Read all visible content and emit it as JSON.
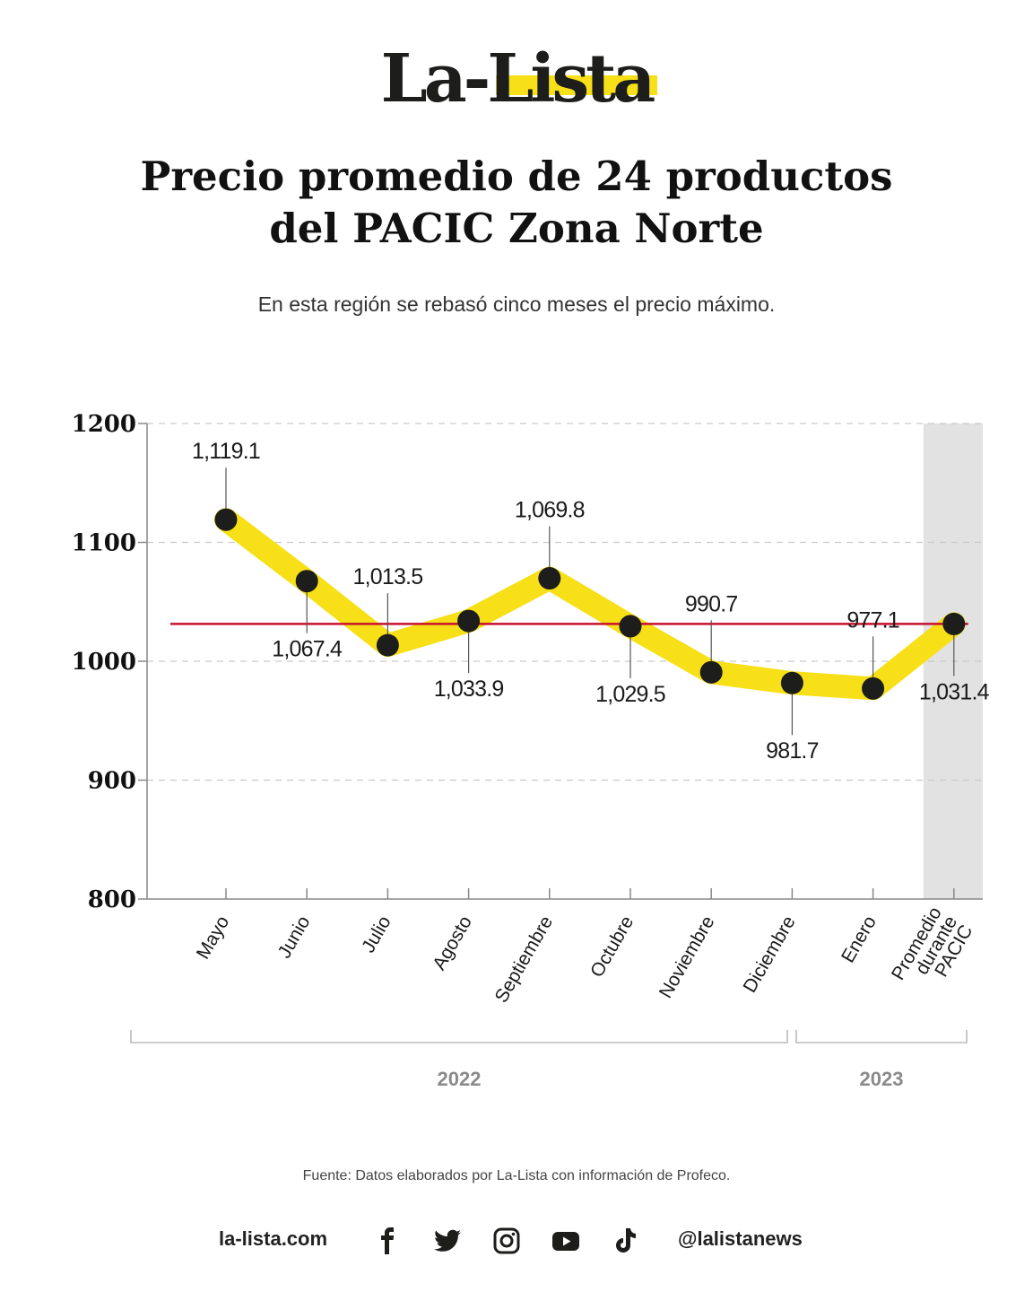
{
  "brand": {
    "logo_text": "La-Lista",
    "accent_color": "#f7e017"
  },
  "header": {
    "title_line1": "Precio promedio de 24 productos",
    "title_line2": "del PACIC Zona Norte",
    "subtitle": "En esta región se rebasó cinco meses el precio máximo."
  },
  "chart_data": {
    "type": "line",
    "title": "Precio promedio de 24 productos del PACIC Zona Norte",
    "categories": [
      "Mayo",
      "Junio",
      "Julio",
      "Agosto",
      "Septiembre",
      "Octubre",
      "Noviembre",
      "Diciembre",
      "Enero",
      "Promedio durante PACIC"
    ],
    "values": [
      1119.1,
      1067.4,
      1013.5,
      1033.9,
      1069.8,
      1029.5,
      990.7,
      981.7,
      977.1,
      1031.4
    ],
    "value_labels": [
      "1,119.1",
      "1,067.4",
      "1,013.5",
      "1,033.9",
      "1,069.8",
      "1,029.5",
      "990.7",
      "981.7",
      "977.1",
      "1,031.4"
    ],
    "label_positions": [
      "above",
      "below",
      "above",
      "below",
      "above",
      "below",
      "above",
      "below",
      "above",
      "below"
    ],
    "yticks": [
      800,
      900,
      1000,
      1100,
      1200
    ],
    "ylim": [
      800,
      1200
    ],
    "reference_line": {
      "value": 1031.4,
      "color": "#c8102e"
    },
    "highlight_category": "Promedio durante PACIC",
    "line_color": "#f7e017",
    "marker_color": "#1d1d1b",
    "grid": "dashed horizontal",
    "year_groups": [
      {
        "label": "2022",
        "from": 0,
        "to": 7
      },
      {
        "label": "2023",
        "from": 8,
        "to": 9
      }
    ],
    "xlabel": "",
    "ylabel": ""
  },
  "footer": {
    "source": "Fuente: Datos elaborados por La-Lista con información de Profeco.",
    "website": "la-lista.com",
    "handle": "@lalistanews",
    "social_icons": [
      "facebook-icon",
      "twitter-icon",
      "instagram-icon",
      "youtube-icon",
      "tiktok-icon"
    ]
  }
}
